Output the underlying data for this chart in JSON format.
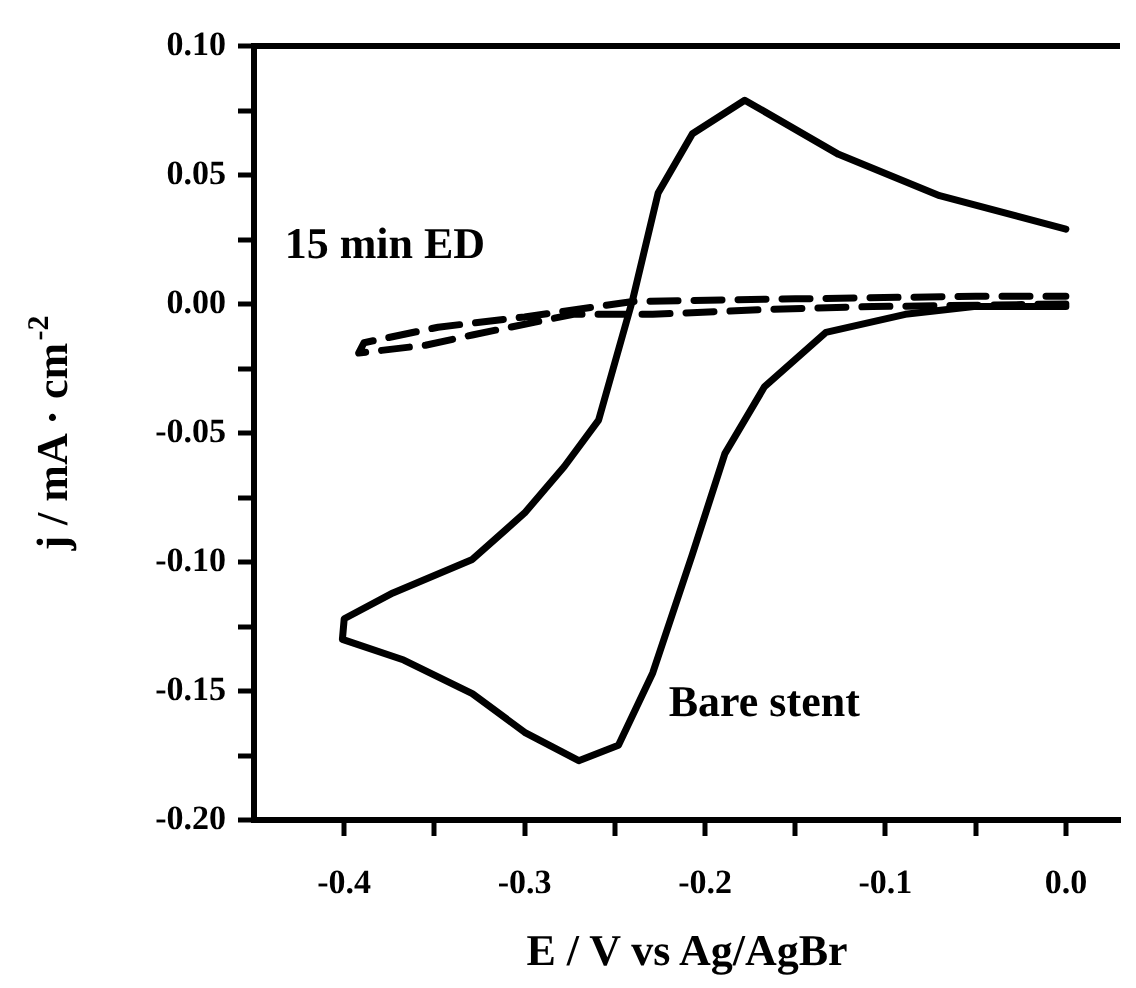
{
  "chart_data": {
    "type": "line",
    "xlabel": "E / V vs Ag/AgBr",
    "ylabel": "j / mA · cm$^{-2}$",
    "xlim": [
      -0.45,
      0.03
    ],
    "xticks": [
      {
        "value": -0.4,
        "label": "-0.4"
      },
      {
        "value": -0.35,
        "label": null
      },
      {
        "value": -0.3,
        "label": "-0.3"
      },
      {
        "value": -0.25,
        "label": null
      },
      {
        "value": -0.2,
        "label": "-0.2"
      },
      {
        "value": -0.15,
        "label": null
      },
      {
        "value": -0.1,
        "label": "-0.1"
      },
      {
        "value": -0.05,
        "label": null
      },
      {
        "value": 0,
        "label": "0.0"
      }
    ],
    "ylim": [
      -0.2,
      0.1
    ],
    "yticks": [
      {
        "value": -0.2,
        "label": "-0.20"
      },
      {
        "value": -0.175,
        "label": null
      },
      {
        "value": -0.15,
        "label": "-0.15"
      },
      {
        "value": -0.125,
        "label": null
      },
      {
        "value": -0.1,
        "label": "-0.10"
      },
      {
        "value": -0.075,
        "label": null
      },
      {
        "value": -0.05,
        "label": "-0.05"
      },
      {
        "value": -0.025,
        "label": null
      },
      {
        "value": 0,
        "label": "0.00"
      },
      {
        "value": 0.025,
        "label": null
      },
      {
        "value": 0.05,
        "label": "0.05"
      },
      {
        "value": 0.075,
        "label": null
      },
      {
        "value": 0.1,
        "label": "0.10"
      }
    ],
    "grid": false,
    "legend": false,
    "marker": "none",
    "series": [
      {
        "name": "Bare stent",
        "color": "#000000",
        "line_style": "solid",
        "x": [
          0,
          -0.051,
          -0.089,
          -0.133,
          -0.167,
          -0.189,
          -0.207,
          -0.229,
          -0.248,
          -0.27,
          -0.3,
          -0.329,
          -0.367,
          -0.401,
          -0.4,
          -0.373,
          -0.329,
          -0.3,
          -0.278,
          -0.259,
          -0.24,
          -0.226,
          -0.207,
          -0.178,
          -0.126,
          -0.07,
          0
        ],
        "values": [
          -0.001,
          -0.001,
          -0.004,
          -0.011,
          -0.032,
          -0.058,
          -0.097,
          -0.143,
          -0.171,
          -0.177,
          -0.166,
          -0.151,
          -0.138,
          -0.13,
          -0.122,
          -0.112,
          -0.099,
          -0.081,
          -0.063,
          -0.045,
          0.002,
          0.043,
          0.066,
          0.079,
          0.058,
          0.042,
          0.029
        ]
      },
      {
        "name": "15 min ED",
        "color": "#000000",
        "line_style": "dashed",
        "x": [
          0,
          -0.107,
          -0.162,
          -0.229,
          -0.273,
          -0.329,
          -0.355,
          -0.392,
          -0.389,
          -0.348,
          -0.3,
          -0.24,
          -0.15,
          -0.05,
          0
        ],
        "values": [
          0,
          -0.001,
          -0.002,
          -0.004,
          -0.004,
          -0.012,
          -0.016,
          -0.019,
          -0.015,
          -0.009,
          -0.005,
          0.001,
          0.002,
          0.003,
          0.003
        ]
      }
    ]
  }
}
